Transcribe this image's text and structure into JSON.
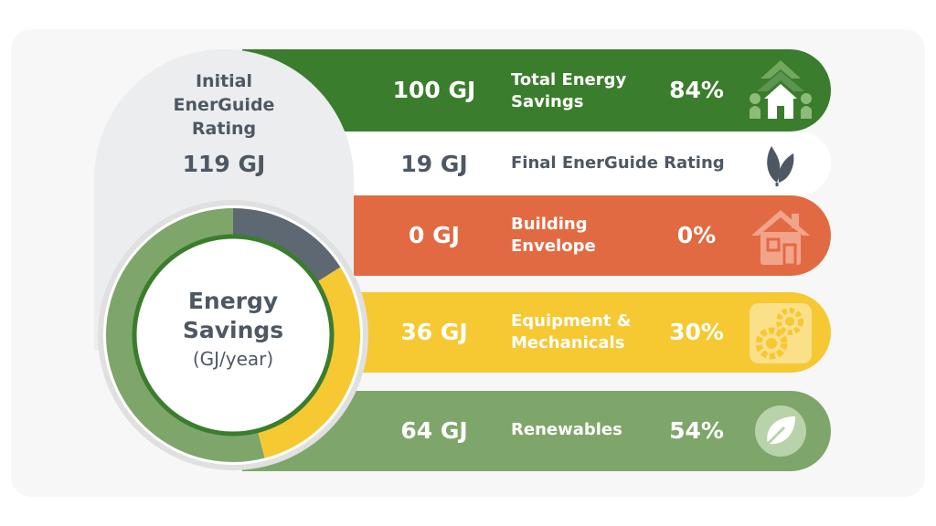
{
  "chart_data": {
    "type": "pie",
    "title": "Energy Savings",
    "subtitle": "(GJ/year)",
    "initial": {
      "label": "Initial EnerGuide Rating",
      "value_label": "119 GJ",
      "value": 119
    },
    "total": {
      "label": "Total Energy Savings",
      "value_label": "100 GJ",
      "value": 100,
      "percent_label": "84%",
      "percent": 84
    },
    "final": {
      "label": "Final EnerGuide Rating",
      "value_label": "19 GJ",
      "value": 19
    },
    "categories": [
      "Building Envelope",
      "Equipment & Mechanicals",
      "Renewables"
    ],
    "values": [
      0,
      36,
      64
    ],
    "value_labels": [
      "0 GJ",
      "36 GJ",
      "64 GJ"
    ],
    "percent_labels": [
      "0%",
      "30%",
      "54%"
    ],
    "percents": [
      0,
      30,
      54
    ],
    "remaining_share": 16,
    "colors": {
      "total": "#3a7d2c",
      "envelope": "#e26a43",
      "equipment": "#f6c832",
      "renewables": "#7ea66a",
      "remaining": "#5e6873",
      "text_dark": "#4d5863"
    },
    "icons": [
      "house-savings-icon",
      "leaf-icon",
      "house-outline-icon",
      "gears-icon",
      "leaf-circle-icon"
    ]
  }
}
